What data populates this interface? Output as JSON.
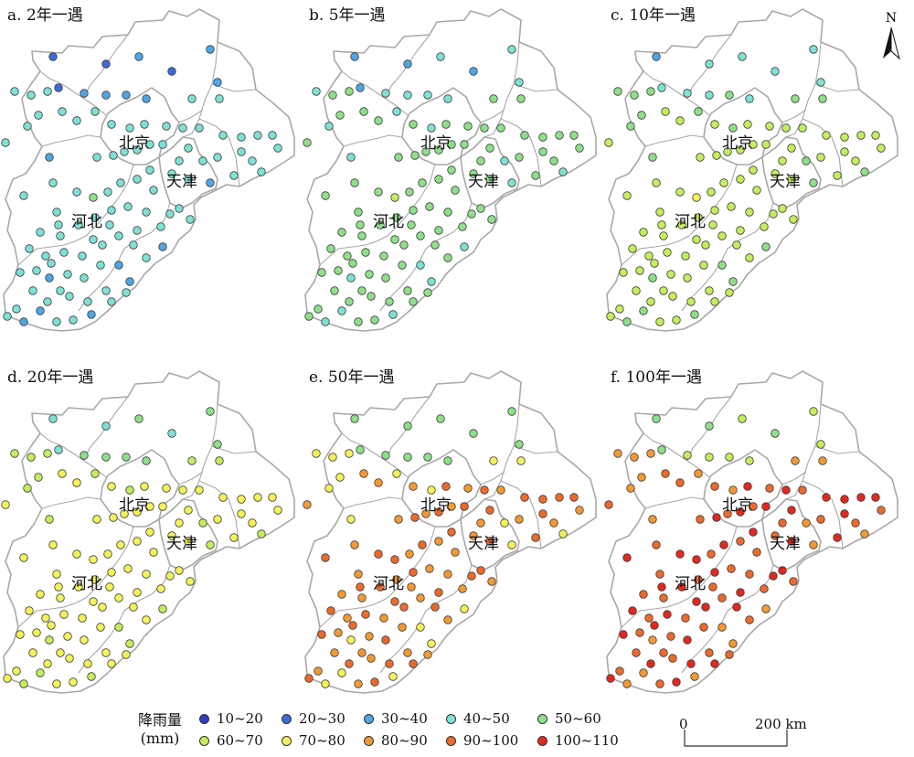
{
  "panels": [
    {
      "id": "a",
      "title": "a. 2年一遇",
      "cls": [
        1,
        1,
        2,
        1,
        2,
        2,
        1,
        2,
        2,
        2,
        2,
        3,
        3,
        3,
        3,
        3,
        3,
        3,
        3,
        3,
        3,
        3,
        3,
        3,
        3,
        3,
        3,
        3,
        3,
        3,
        3,
        3,
        3,
        3,
        3,
        3,
        3,
        3,
        3,
        3,
        3,
        3,
        3,
        3,
        3,
        3,
        3,
        3,
        2,
        3,
        2,
        3,
        3,
        3,
        3,
        4,
        3,
        3,
        3,
        3,
        3,
        3,
        3,
        3,
        3,
        3,
        3,
        3,
        3,
        3,
        3,
        3,
        3,
        3,
        3,
        3,
        3,
        3,
        3,
        3,
        2,
        3,
        3,
        3,
        2,
        3,
        3,
        3,
        3,
        3,
        2,
        3,
        2,
        3,
        3,
        3,
        3,
        3,
        3,
        2,
        3,
        3,
        2,
        3,
        3,
        2,
        3,
        3,
        3
      ]
    },
    {
      "id": "b",
      "title": "b. 5年一遇",
      "cls": [
        2,
        2,
        3,
        2,
        3,
        3,
        2,
        3,
        3,
        3,
        3,
        4,
        4,
        3,
        4,
        4,
        4,
        4,
        3,
        4,
        3,
        4,
        3,
        4,
        4,
        4,
        4,
        4,
        4,
        4,
        4,
        4,
        4,
        4,
        3,
        4,
        4,
        3,
        4,
        4,
        4,
        4,
        4,
        4,
        4,
        4,
        4,
        4,
        3,
        4,
        3,
        4,
        4,
        4,
        4,
        5,
        4,
        4,
        4,
        4,
        4,
        4,
        4,
        4,
        4,
        4,
        4,
        4,
        4,
        4,
        4,
        4,
        4,
        4,
        4,
        4,
        4,
        4,
        4,
        4,
        3,
        4,
        4,
        4,
        3,
        4,
        4,
        4,
        4,
        4,
        3,
        4,
        3,
        4,
        4,
        4,
        4,
        4,
        4,
        3,
        4,
        4,
        3,
        4,
        4,
        3,
        4,
        4,
        4
      ]
    },
    {
      "id": "c",
      "title": "c. 10年一遇",
      "cls": [
        2,
        3,
        3,
        3,
        3,
        3,
        3,
        3,
        3,
        4,
        3,
        4,
        4,
        4,
        4,
        4,
        4,
        5,
        4,
        5,
        4,
        5,
        4,
        5,
        5,
        5,
        5,
        5,
        5,
        5,
        5,
        5,
        5,
        5,
        4,
        5,
        5,
        4,
        5,
        5,
        5,
        5,
        5,
        5,
        5,
        5,
        5,
        5,
        4,
        5,
        4,
        5,
        5,
        5,
        5,
        6,
        5,
        5,
        5,
        5,
        5,
        5,
        5,
        5,
        5,
        5,
        5,
        5,
        5,
        5,
        5,
        5,
        5,
        5,
        5,
        5,
        5,
        5,
        5,
        5,
        4,
        5,
        5,
        5,
        4,
        5,
        5,
        5,
        5,
        5,
        4,
        5,
        4,
        5,
        5,
        5,
        5,
        5,
        5,
        4,
        5,
        5,
        4,
        5,
        5,
        4,
        5,
        5,
        5
      ]
    },
    {
      "id": "d",
      "title": "d. 20年一遇",
      "cls": [
        3,
        3,
        4,
        3,
        4,
        4,
        3,
        4,
        4,
        4,
        4,
        5,
        5,
        5,
        5,
        5,
        5,
        6,
        5,
        6,
        5,
        6,
        5,
        6,
        6,
        6,
        6,
        6,
        6,
        6,
        6,
        6,
        6,
        6,
        5,
        6,
        6,
        5,
        6,
        6,
        6,
        6,
        6,
        6,
        6,
        6,
        6,
        6,
        5,
        6,
        5,
        6,
        6,
        6,
        6,
        6,
        6,
        6,
        6,
        6,
        6,
        6,
        6,
        6,
        6,
        6,
        6,
        6,
        6,
        6,
        6,
        6,
        6,
        6,
        6,
        6,
        6,
        6,
        6,
        6,
        5,
        6,
        6,
        6,
        5,
        6,
        6,
        6,
        6,
        6,
        5,
        6,
        5,
        6,
        6,
        6,
        6,
        6,
        6,
        5,
        6,
        6,
        5,
        6,
        6,
        5,
        6,
        6,
        6
      ]
    },
    {
      "id": "e",
      "title": "e. 50年一遇",
      "cls": [
        4,
        4,
        4,
        4,
        4,
        4,
        4,
        4,
        4,
        4,
        4,
        6,
        6,
        6,
        6,
        6,
        6,
        7,
        6,
        7,
        6,
        7,
        6,
        8,
        7,
        8,
        7,
        8,
        8,
        8,
        7,
        8,
        7,
        8,
        6,
        8,
        7,
        6,
        8,
        7,
        8,
        7,
        8,
        7,
        8,
        7,
        7,
        8,
        6,
        7,
        6,
        7,
        8,
        7,
        8,
        8,
        7,
        8,
        7,
        8,
        7,
        7,
        8,
        7,
        8,
        8,
        7,
        8,
        7,
        8,
        7,
        8,
        7,
        8,
        7,
        8,
        7,
        8,
        7,
        8,
        6,
        7,
        8,
        7,
        6,
        7,
        8,
        7,
        8,
        7,
        6,
        7,
        6,
        7,
        8,
        7,
        8,
        7,
        8,
        6,
        7,
        8,
        6,
        7,
        8,
        6,
        7,
        8,
        7
      ]
    },
    {
      "id": "f",
      "title": "f. 100年一遇",
      "cls": [
        4,
        4,
        5,
        4,
        5,
        5,
        4,
        5,
        5,
        5,
        5,
        7,
        7,
        7,
        7,
        7,
        7,
        8,
        7,
        8,
        7,
        8,
        7,
        9,
        8,
        9,
        8,
        9,
        9,
        9,
        8,
        9,
        8,
        9,
        7,
        9,
        8,
        7,
        9,
        8,
        9,
        8,
        9,
        8,
        9,
        8,
        8,
        9,
        7,
        8,
        7,
        8,
        9,
        8,
        9,
        9,
        8,
        9,
        8,
        9,
        8,
        8,
        9,
        8,
        9,
        9,
        8,
        9,
        8,
        9,
        8,
        9,
        8,
        9,
        8,
        9,
        8,
        9,
        8,
        9,
        7,
        8,
        9,
        8,
        7,
        8,
        9,
        8,
        9,
        8,
        7,
        8,
        7,
        8,
        9,
        8,
        9,
        8,
        9,
        7,
        8,
        9,
        7,
        8,
        9,
        7,
        8,
        9,
        8
      ]
    }
  ],
  "regions": {
    "beijing": "北京",
    "tianjin": "天津",
    "hebei": "河北"
  },
  "north_label": "N",
  "legend": {
    "title_line1": "降雨量",
    "title_line2": "(mm)",
    "items": [
      {
        "label": "10~20",
        "color": "#2a3fbf"
      },
      {
        "label": "20~30",
        "color": "#3f6bd8"
      },
      {
        "label": "30~40",
        "color": "#4ea6e6"
      },
      {
        "label": "40~50",
        "color": "#7fe0d4"
      },
      {
        "label": "50~60",
        "color": "#8fdf8a"
      },
      {
        "label": "60~70",
        "color": "#c4ee5c"
      },
      {
        "label": "70~80",
        "color": "#f4f45a"
      },
      {
        "label": "80~90",
        "color": "#f39a33"
      },
      {
        "label": "90~100",
        "color": "#ec6a2c"
      },
      {
        "label": "100~110",
        "color": "#e42820"
      }
    ]
  },
  "scale_bar": {
    "start_label": "0",
    "end_label": "200 km"
  }
}
